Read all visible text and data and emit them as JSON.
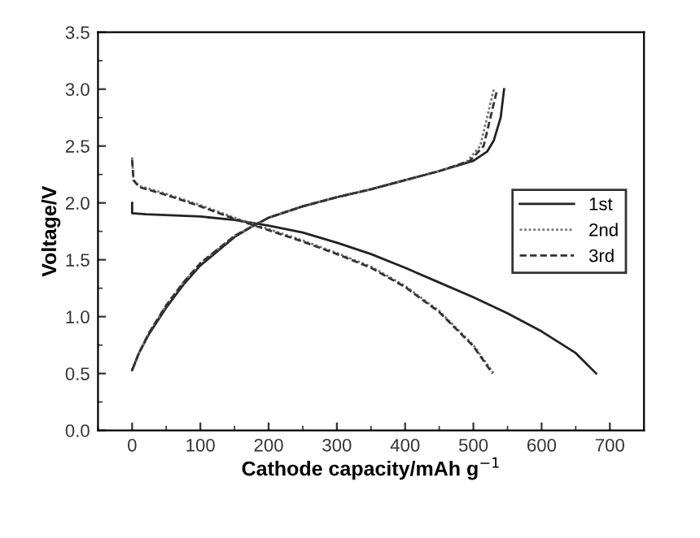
{
  "chart_data": {
    "type": "line",
    "xlabel": "Cathode capacity/mAh g$^{−1}$",
    "ylabel": "Voltage/V",
    "xlim": [
      -50,
      750
    ],
    "xticks": [
      0,
      100,
      200,
      300,
      400,
      500,
      600,
      700
    ],
    "ylim": [
      0.0,
      3.5
    ],
    "yticks": [
      {
        "value": 0,
        "label": "0.0"
      },
      0.5,
      {
        "value": 1,
        "label": "1.0"
      },
      1.5,
      {
        "value": 2,
        "label": "2.0"
      },
      2.5,
      {
        "value": 3,
        "label": "3.0"
      },
      3.5
    ],
    "grid": false,
    "legend": "right",
    "marker": "none",
    "series": [
      {
        "name": "1st",
        "color": "#222222",
        "line_style": "solid",
        "x": [
          0,
          0,
          20,
          100,
          150,
          200,
          250,
          300,
          350,
          400,
          450,
          500,
          550,
          600,
          650,
          680,
          null,
          0,
          10,
          25,
          50,
          75,
          100,
          150,
          175,
          200,
          250,
          300,
          350,
          400,
          450,
          500,
          520,
          530,
          540,
          545
        ],
        "values": [
          2.0,
          1.91,
          1.9,
          1.88,
          1.85,
          1.8,
          1.74,
          1.65,
          1.55,
          1.43,
          1.3,
          1.17,
          1.03,
          0.87,
          0.68,
          0.5,
          null,
          0.53,
          0.68,
          0.85,
          1.08,
          1.28,
          1.45,
          1.7,
          1.79,
          1.87,
          1.97,
          2.05,
          2.12,
          2.2,
          2.28,
          2.37,
          2.45,
          2.55,
          2.75,
          3.0
        ]
      },
      {
        "name": "2nd",
        "color": "#777777",
        "line_style": "dotted",
        "x": [
          0,
          2,
          10,
          50,
          100,
          150,
          200,
          250,
          300,
          350,
          400,
          450,
          500,
          530,
          null,
          0,
          10,
          25,
          50,
          75,
          100,
          150,
          175,
          200,
          250,
          300,
          350,
          400,
          450,
          490,
          510,
          520,
          530
        ],
        "values": [
          2.4,
          2.2,
          2.15,
          2.08,
          1.98,
          1.87,
          1.77,
          1.67,
          1.56,
          1.44,
          1.27,
          1.05,
          0.75,
          0.5,
          null,
          0.53,
          0.68,
          0.86,
          1.1,
          1.3,
          1.47,
          1.71,
          1.79,
          1.87,
          1.97,
          2.05,
          2.12,
          2.2,
          2.28,
          2.36,
          2.5,
          2.75,
          3.0
        ]
      },
      {
        "name": "3rd",
        "color": "#333333",
        "line_style": "dashed",
        "x": [
          0,
          2,
          10,
          50,
          100,
          150,
          200,
          250,
          300,
          350,
          400,
          450,
          500,
          528,
          null,
          0,
          10,
          25,
          50,
          75,
          100,
          150,
          175,
          200,
          250,
          300,
          350,
          400,
          450,
          495,
          515,
          525,
          535
        ],
        "values": [
          2.38,
          2.2,
          2.14,
          2.07,
          1.97,
          1.86,
          1.76,
          1.66,
          1.55,
          1.43,
          1.26,
          1.04,
          0.74,
          0.5,
          null,
          0.53,
          0.68,
          0.86,
          1.1,
          1.3,
          1.47,
          1.71,
          1.79,
          1.87,
          1.97,
          2.05,
          2.12,
          2.2,
          2.28,
          2.37,
          2.5,
          2.75,
          3.0
        ]
      }
    ]
  }
}
